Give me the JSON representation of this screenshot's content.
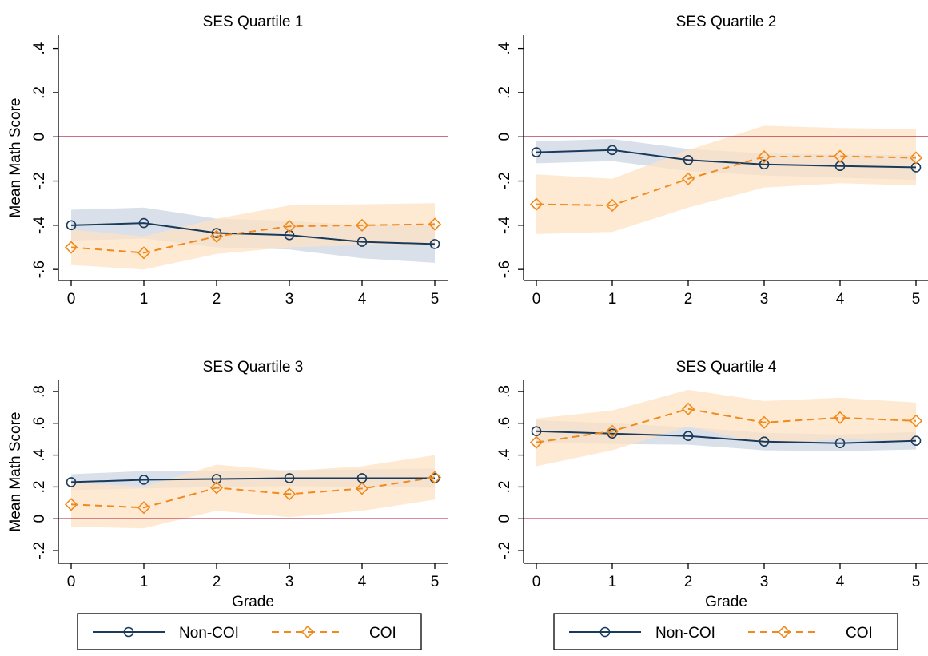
{
  "colors": {
    "noncoi": "#1a3a5c",
    "coi": "#f08a1c",
    "zero_line": "#b0173a",
    "noncoi_band": "#c9d3e0",
    "coi_band": "#fde3c4"
  },
  "legend": {
    "noncoi_label": "Non-COI",
    "coi_label": "COI"
  },
  "chart_data": [
    {
      "type": "line",
      "title": "SES Quartile 1",
      "xlabel": "",
      "ylabel": "Mean Math Score",
      "x": [
        0,
        1,
        2,
        3,
        4,
        5
      ],
      "xticks": [
        "0",
        "1",
        "2",
        "3",
        "4",
        "5"
      ],
      "ylim": [
        -0.65,
        0.46
      ],
      "yticks": [
        -0.6,
        -0.4,
        -0.2,
        0,
        0.2,
        0.4
      ],
      "ytick_labels": [
        "-.6",
        "-.4",
        "-.2",
        "0",
        ".2",
        ".4"
      ],
      "series": [
        {
          "name": "Non-COI",
          "values": [
            -0.4,
            -0.39,
            -0.435,
            -0.445,
            -0.475,
            -0.485
          ],
          "lower": [
            -0.47,
            -0.46,
            -0.5,
            -0.51,
            -0.55,
            -0.57
          ],
          "upper": [
            -0.33,
            -0.32,
            -0.37,
            -0.38,
            -0.4,
            -0.4
          ]
        },
        {
          "name": "COI",
          "values": [
            -0.5,
            -0.525,
            -0.45,
            -0.405,
            -0.4,
            -0.395
          ],
          "lower": [
            -0.58,
            -0.6,
            -0.53,
            -0.5,
            -0.49,
            -0.49
          ],
          "upper": [
            -0.42,
            -0.45,
            -0.37,
            -0.31,
            -0.305,
            -0.3
          ]
        }
      ]
    },
    {
      "type": "line",
      "title": "SES Quartile 2",
      "xlabel": "",
      "ylabel": "",
      "x": [
        0,
        1,
        2,
        3,
        4,
        5
      ],
      "xticks": [
        "0",
        "1",
        "2",
        "3",
        "4",
        "5"
      ],
      "ylim": [
        -0.65,
        0.46
      ],
      "yticks": [
        -0.6,
        -0.4,
        -0.2,
        0,
        0.2,
        0.4
      ],
      "ytick_labels": [
        "-.6",
        "-.4",
        "-.2",
        "0",
        ".2",
        ".4"
      ],
      "series": [
        {
          "name": "Non-COI",
          "values": [
            -0.07,
            -0.06,
            -0.105,
            -0.125,
            -0.132,
            -0.138
          ],
          "lower": [
            -0.12,
            -0.11,
            -0.155,
            -0.175,
            -0.185,
            -0.195
          ],
          "upper": [
            -0.02,
            -0.01,
            -0.055,
            -0.075,
            -0.08,
            -0.082
          ]
        },
        {
          "name": "COI",
          "values": [
            -0.305,
            -0.31,
            -0.19,
            -0.09,
            -0.088,
            -0.095
          ],
          "lower": [
            -0.44,
            -0.43,
            -0.32,
            -0.23,
            -0.21,
            -0.22
          ],
          "upper": [
            -0.17,
            -0.19,
            -0.06,
            0.05,
            0.04,
            0.035
          ]
        }
      ]
    },
    {
      "type": "line",
      "title": "SES Quartile 3",
      "xlabel": "Grade",
      "ylabel": "Mean Math Score",
      "x": [
        0,
        1,
        2,
        3,
        4,
        5
      ],
      "xticks": [
        "0",
        "1",
        "2",
        "3",
        "4",
        "5"
      ],
      "ylim": [
        -0.28,
        0.87
      ],
      "yticks": [
        -0.2,
        0,
        0.2,
        0.4,
        0.6,
        0.8
      ],
      "ytick_labels": [
        "-.2",
        "0",
        ".2",
        ".4",
        ".6",
        ".8"
      ],
      "series": [
        {
          "name": "Non-COI",
          "values": [
            0.23,
            0.245,
            0.25,
            0.255,
            0.255,
            0.255
          ],
          "lower": [
            0.18,
            0.19,
            0.2,
            0.205,
            0.2,
            0.195
          ],
          "upper": [
            0.28,
            0.3,
            0.3,
            0.305,
            0.31,
            0.315
          ]
        },
        {
          "name": "COI",
          "values": [
            0.09,
            0.07,
            0.195,
            0.155,
            0.19,
            0.26
          ],
          "lower": [
            -0.05,
            -0.06,
            0.05,
            0.01,
            0.05,
            0.12
          ],
          "upper": [
            0.23,
            0.2,
            0.34,
            0.3,
            0.33,
            0.4
          ]
        }
      ]
    },
    {
      "type": "line",
      "title": "SES Quartile 4",
      "xlabel": "Grade",
      "ylabel": "",
      "x": [
        0,
        1,
        2,
        3,
        4,
        5
      ],
      "xticks": [
        "0",
        "1",
        "2",
        "3",
        "4",
        "5"
      ],
      "ylim": [
        -0.28,
        0.87
      ],
      "yticks": [
        -0.2,
        0,
        0.2,
        0.4,
        0.6,
        0.8
      ],
      "ytick_labels": [
        "-.2",
        "0",
        ".2",
        ".4",
        ".6",
        ".8"
      ],
      "series": [
        {
          "name": "Non-COI",
          "values": [
            0.55,
            0.535,
            0.52,
            0.485,
            0.475,
            0.49
          ],
          "lower": [
            0.48,
            0.47,
            0.465,
            0.43,
            0.425,
            0.435
          ],
          "upper": [
            0.62,
            0.6,
            0.575,
            0.54,
            0.53,
            0.545
          ]
        },
        {
          "name": "COI",
          "values": [
            0.48,
            0.55,
            0.69,
            0.605,
            0.635,
            0.615
          ],
          "lower": [
            0.33,
            0.43,
            0.58,
            0.47,
            0.5,
            0.49
          ],
          "upper": [
            0.63,
            0.68,
            0.81,
            0.74,
            0.76,
            0.73
          ]
        }
      ]
    }
  ]
}
